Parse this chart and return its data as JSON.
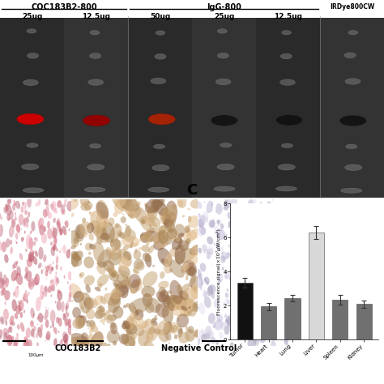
{
  "panel_c_label": "C",
  "categories": [
    "Tumor",
    "Heart",
    "Lung",
    "Liver",
    "Spleen",
    "Kidney"
  ],
  "values": [
    3.35,
    1.95,
    2.45,
    6.3,
    2.35,
    2.1
  ],
  "errors": [
    0.28,
    0.22,
    0.18,
    0.38,
    0.28,
    0.22
  ],
  "bar_colors": [
    "#111111",
    "#707070",
    "#707070",
    "#d8d8d8",
    "#707070",
    "#707070"
  ],
  "ylabel": "Fluorescence signal(×10⁷μW/cm²)",
  "ylim": [
    0,
    8
  ],
  "yticks": [
    0,
    2,
    4,
    6,
    8
  ],
  "top_labels_group1": "COC183B2-800",
  "top_labels_group2": "IgG-800",
  "top_labels_group3": "IRDye800CW",
  "col_labels": [
    "25ug",
    "12.5ug",
    "50ug",
    "25ug",
    "12.5ug",
    ""
  ],
  "bottom_label1": "COC183B2",
  "bottom_label2": "Negative Control",
  "figure_bg": "#ffffff",
  "top_bg": "#3c3c3c",
  "col_bg_even": "#2a2a2a",
  "col_bg_odd": "#333333"
}
